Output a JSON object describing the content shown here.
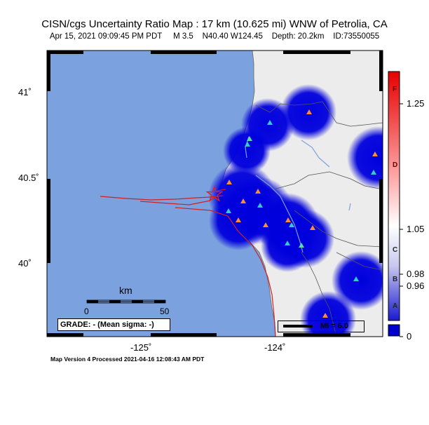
{
  "title": "CISN/cgs Uncertainty Ratio Map : 17 km (10.625 mi) WNW of Petrolia, CA",
  "event": {
    "datetime": "Apr 15, 2021 09:09:45 PM PDT",
    "magnitude": "M 3.5",
    "location": "N40.40 W124.45",
    "depth": "Depth: 20.2km",
    "id": "ID:73550055"
  },
  "axes": {
    "lat_ticks": [
      "41˚",
      "40.5˚",
      "40˚"
    ],
    "lon_ticks": [
      "-125˚",
      "-124˚"
    ]
  },
  "scale_bar": {
    "unit": "km",
    "ticks": [
      "0",
      "50"
    ]
  },
  "grade_box": "GRADE: - (Mean sigma: -)",
  "mi_legend": "MI = 6.0",
  "colorbar": {
    "tick_values": [
      "1.25",
      "1.05",
      "0.98",
      "0.96",
      "0"
    ],
    "letters": [
      "F",
      "D",
      "C",
      "B",
      "A"
    ],
    "colors": {
      "top": "#e60000",
      "mid": "#ffffff",
      "bottom": "#0000cc",
      "bottom_block": "#0000cc"
    }
  },
  "footer": "Map Version 4 Processed 2021-04-16 12:08:43 AM PDT",
  "map_colors": {
    "ocean": "#7ca1df",
    "land": "#ececec",
    "coverage": "#0000dd",
    "fault": "#cc2222"
  }
}
